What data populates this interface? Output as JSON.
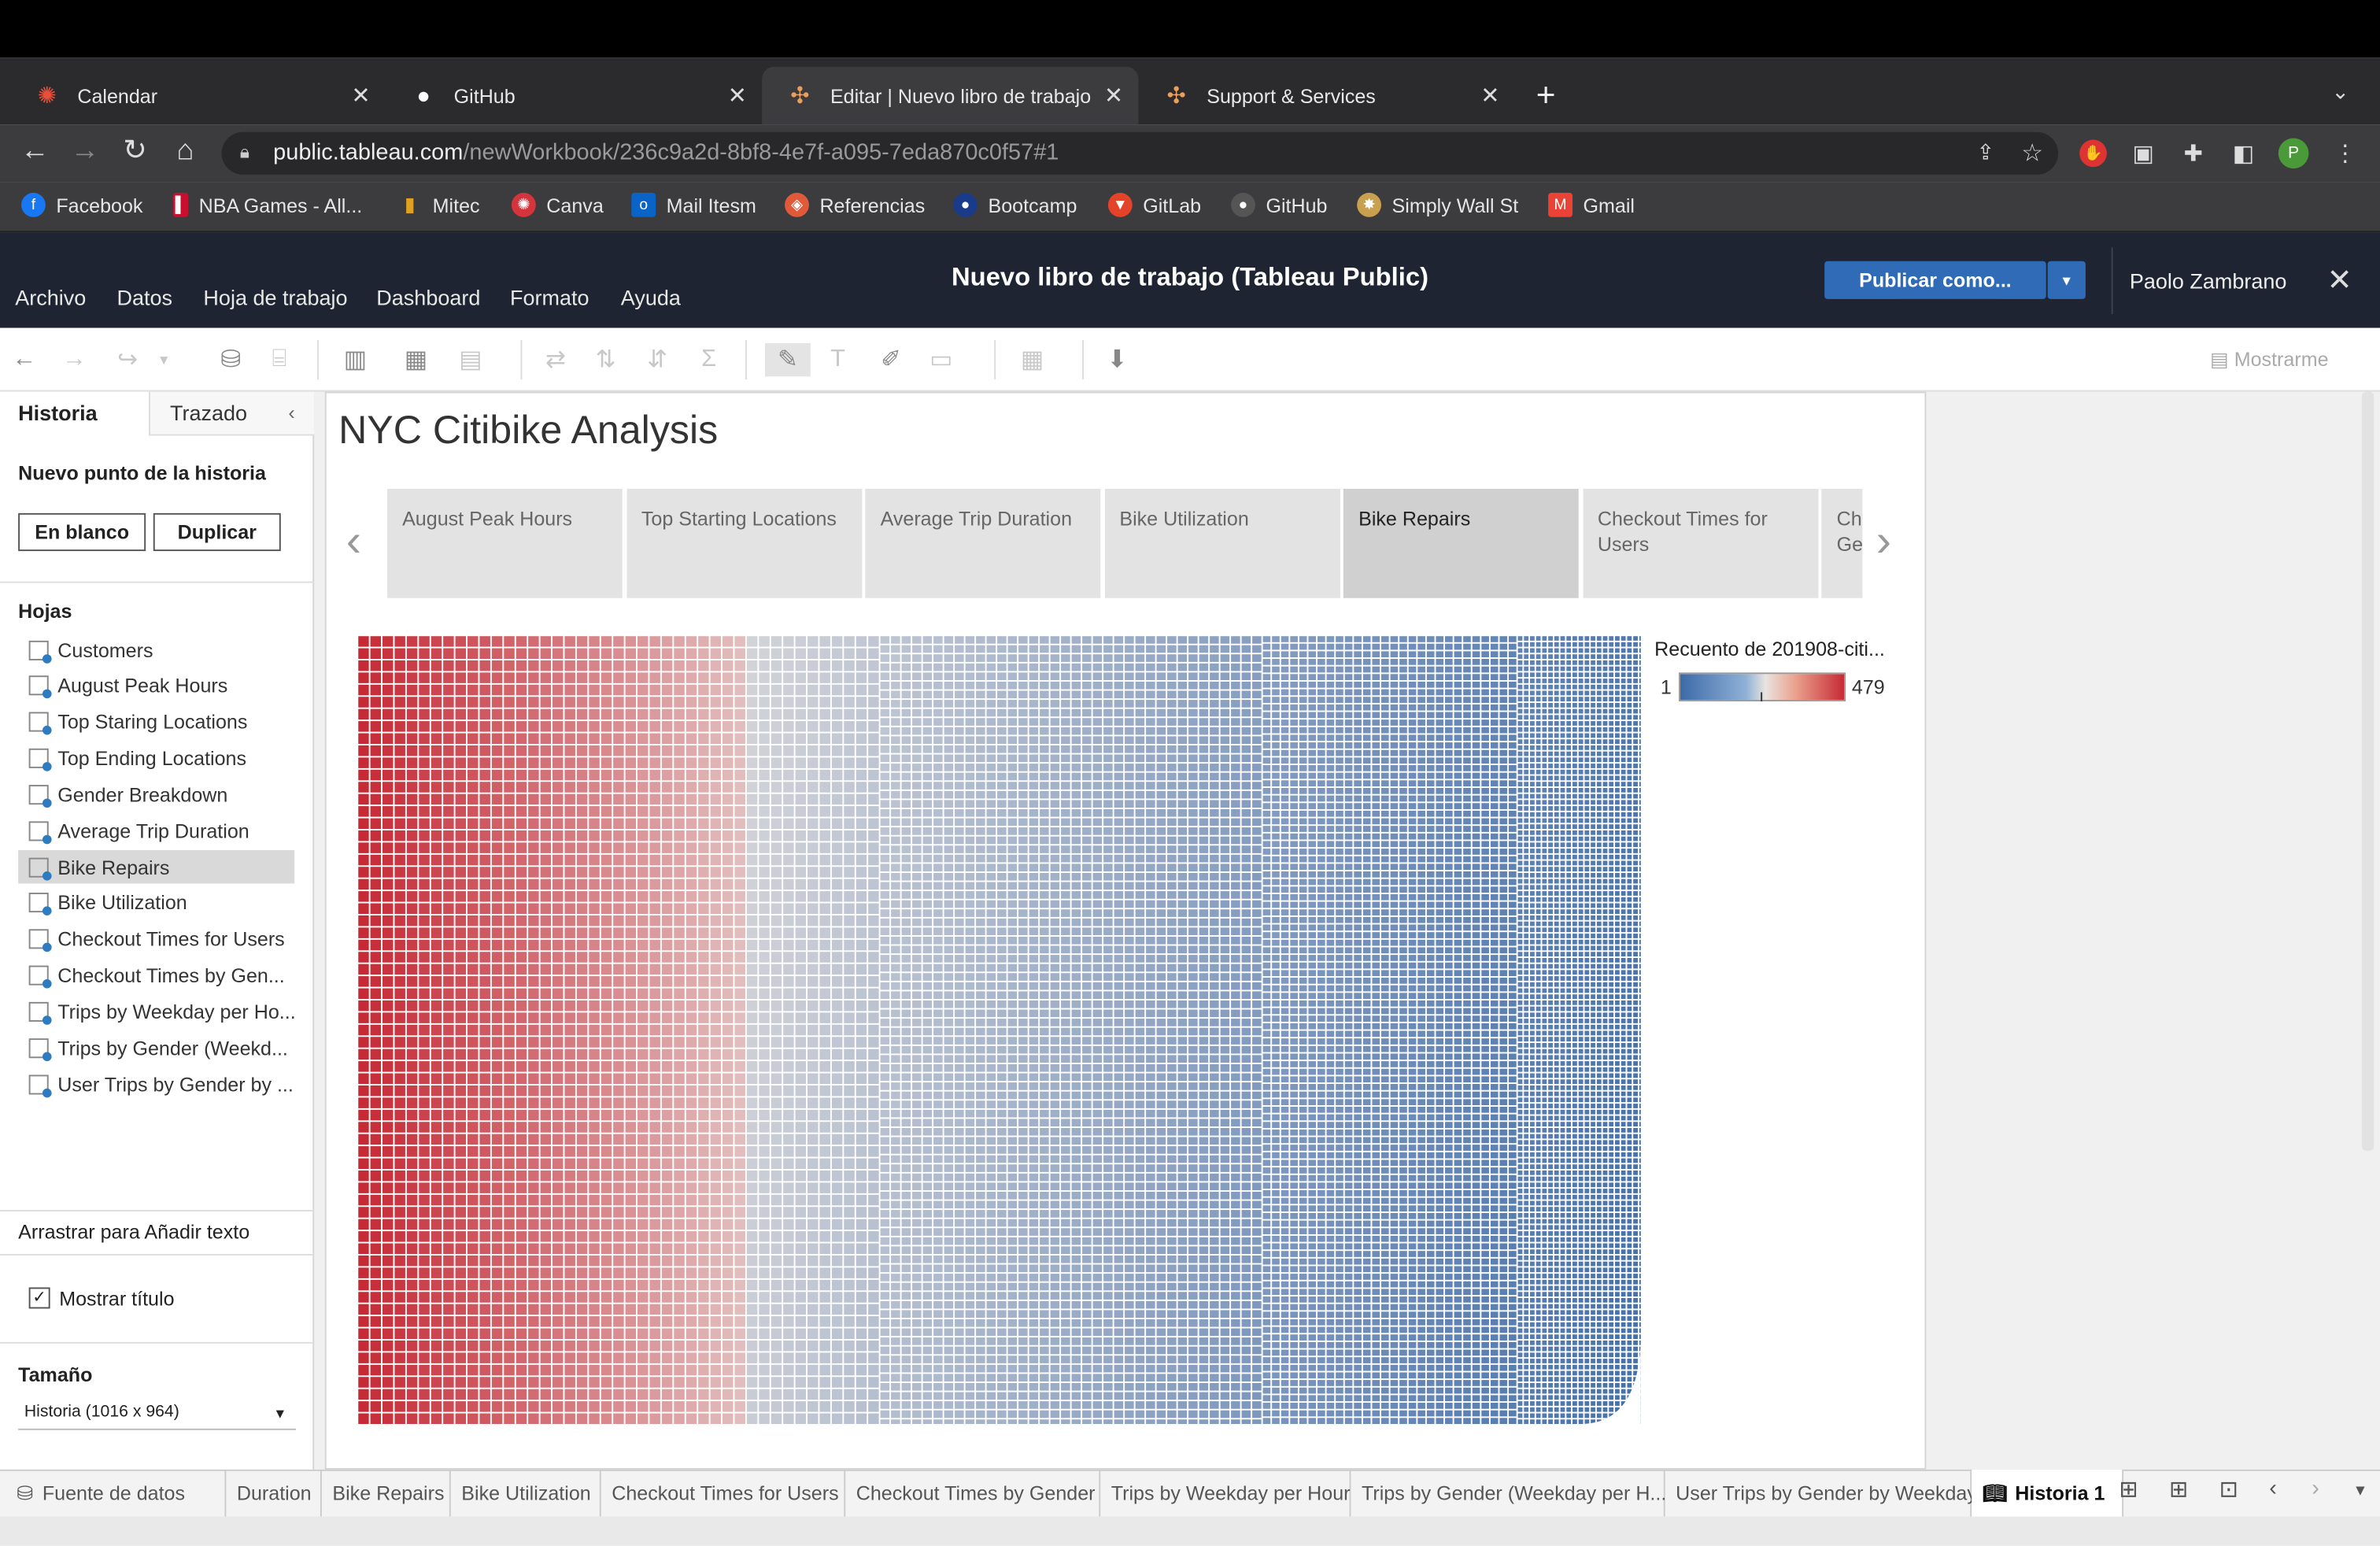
{
  "browser": {
    "tabs": [
      {
        "title": "Calendar",
        "icon": "calendar-icon",
        "active": false
      },
      {
        "title": "GitHub",
        "icon": "github-icon",
        "active": false
      },
      {
        "title": "Editar | Nuevo libro de trabajo",
        "icon": "tableau-icon",
        "active": true
      },
      {
        "title": "Support & Services",
        "icon": "tableau-icon",
        "active": false
      }
    ],
    "url_host": "public.tableau.com",
    "url_path": "/newWorkbook/236c9a2d-8bf8-4e7f-a095-7eda870c0f57#1",
    "profile_initial": "P",
    "bookmarks": [
      {
        "label": "Facebook",
        "color": "#1877f2"
      },
      {
        "label": "NBA Games - All...",
        "color": "#c8102e"
      },
      {
        "label": "Mitec",
        "color": "#e0a020"
      },
      {
        "label": "Canva",
        "color": "#d6343c"
      },
      {
        "label": "Mail Itesm",
        "color": "#0a64c8"
      },
      {
        "label": "Referencias",
        "color": "#e05a3a"
      },
      {
        "label": "Bootcamp",
        "color": "#1a3a8a"
      },
      {
        "label": "GitLab",
        "color": "#e24329"
      },
      {
        "label": "GitHub",
        "color": "#555555"
      },
      {
        "label": "Simply Wall St",
        "color": "#c8a050"
      },
      {
        "label": "Gmail",
        "color": "#ea4335"
      }
    ]
  },
  "header": {
    "menu": [
      "Archivo",
      "Datos",
      "Hoja de trabajo",
      "Dashboard",
      "Formato",
      "Ayuda"
    ],
    "title": "Nuevo libro de trabajo (Tableau Public)",
    "publish_label": "Publicar como...",
    "user": "Paolo Zambrano"
  },
  "toolbar": {
    "show_me": "Mostrarme"
  },
  "left_panel": {
    "tab_story": "Historia",
    "tab_layout": "Trazado",
    "new_point_label": "Nuevo punto de la historia",
    "blank_button": "En blanco",
    "duplicate_button": "Duplicar",
    "sheets_heading": "Hojas",
    "sheets": [
      "Customers",
      "August Peak Hours",
      "Top Staring Locations",
      "Top Ending Locations",
      "Gender Breakdown",
      "Average Trip Duration",
      "Bike Repairs",
      "Bike Utilization",
      "Checkout Times for Users",
      "Checkout Times by Gen...",
      "Trips by Weekday per Ho...",
      "Trips by Gender (Weekd...",
      "User Trips by Gender by ..."
    ],
    "selected_sheet": "Bike Repairs",
    "drag_text": "Arrastrar para Añadir texto",
    "show_title_label": "Mostrar título",
    "show_title_checked": true,
    "size_heading": "Tamaño",
    "size_value": "Historia (1016 x 964)"
  },
  "story": {
    "title": "NYC Citibike Analysis",
    "points": [
      "August Peak Hours",
      "Top Starting Locations",
      "Average Trip Duration",
      "Bike Utilization",
      "Bike Repairs",
      "Checkout Times for Users",
      "Checkout Times by Gender"
    ],
    "selected_point": "Bike Repairs"
  },
  "chart_data": {
    "type": "heatmap",
    "title": "",
    "legend_title": "Recuento de 201908-citi...",
    "legend_min": "1",
    "legend_max": "479",
    "color_low": "#3d6aa8",
    "color_mid": "#e9e3e0",
    "color_high": "#c62a35",
    "legend_placement": "top-right"
  },
  "bottom_tabs": [
    "Fuente de datos",
    "Duration",
    "Bike Repairs",
    "Bike Utilization",
    "Checkout Times for Users",
    "Checkout Times by Gender",
    "Trips by Weekday per Hour",
    "Trips by Gender (Weekday per H...",
    "User Trips by Gender by Weekday",
    "Historia 1"
  ],
  "active_bottom_tab": "Historia 1"
}
